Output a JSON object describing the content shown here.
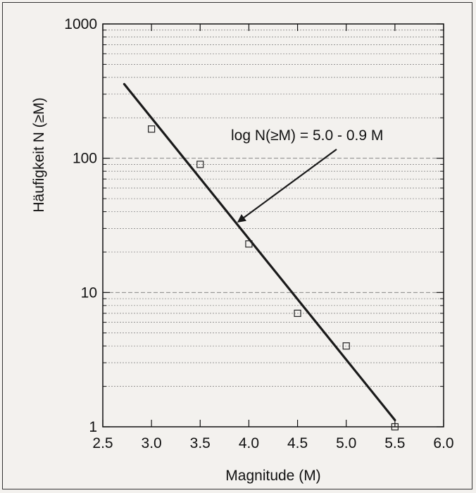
{
  "chart_data": {
    "type": "scatter",
    "title": "",
    "xlabel": "Magnitude (M)",
    "ylabel": "Häufigkeit N (≥M)",
    "xlim": [
      2.5,
      6.0
    ],
    "ylim": [
      1,
      1000
    ],
    "yscale": "log",
    "x_ticks": [
      "2.5",
      "3.0",
      "3.5",
      "4.0",
      "4.5",
      "5.0",
      "5.5",
      "6.0"
    ],
    "y_ticks": [
      "1",
      "10",
      "100",
      "1000"
    ],
    "grid": "horizontal minor and major",
    "points": [
      {
        "x": 3.0,
        "y": 165
      },
      {
        "x": 3.5,
        "y": 90
      },
      {
        "x": 4.0,
        "y": 23
      },
      {
        "x": 4.5,
        "y": 7
      },
      {
        "x": 5.0,
        "y": 4
      },
      {
        "x": 5.5,
        "y": 1
      }
    ],
    "fit_line": {
      "intercept": 5.0,
      "slope": -0.9,
      "x_start": 2.72,
      "x_end": 5.5
    },
    "annotation": {
      "text": "log N(≥M) = 5.0 - 0.9 M",
      "arrow_target_x": 3.87
    },
    "colors": {
      "line": "#1a1a1a",
      "marker": "#222222",
      "grid": "#777777",
      "background": "#f3f1ee"
    }
  }
}
